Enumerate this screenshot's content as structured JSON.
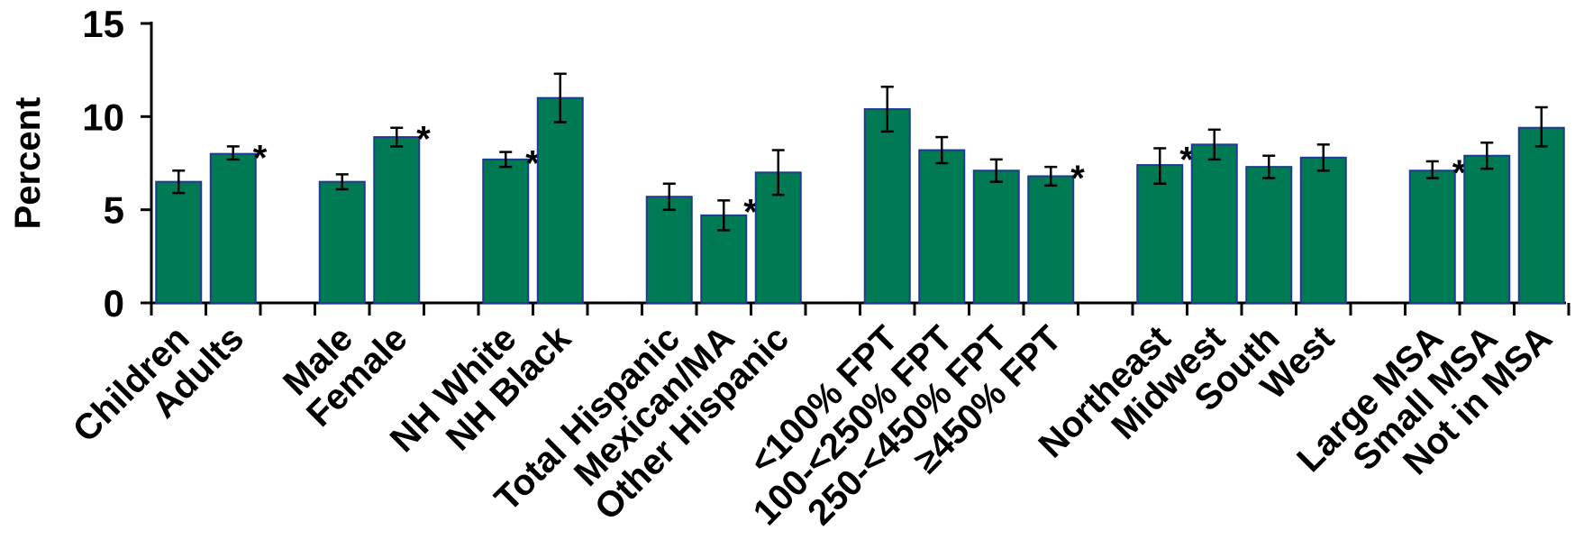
{
  "chart_data": {
    "type": "bar",
    "ylabel": "Percent",
    "ylim": [
      0,
      15
    ],
    "yticks": [
      0,
      5,
      10,
      15
    ],
    "grid": false,
    "legend": "none",
    "colors": {
      "bar": "#007A53",
      "bar_edge": "#1F3A93",
      "axis": "#000000"
    },
    "groups": [
      {
        "categories": [
          "Children",
          "Adults"
        ]
      },
      {
        "categories": [
          "Male",
          "Female"
        ]
      },
      {
        "categories": [
          "NH White",
          "NH Black"
        ]
      },
      {
        "categories": [
          "Total Hispanic",
          "Mexican/MA",
          "Other Hispanic"
        ]
      },
      {
        "categories": [
          "<100% FPT",
          "100-<250% FPT",
          "250-<450% FPT",
          "≥450% FPT"
        ]
      },
      {
        "categories": [
          "Northeast",
          "Midwest",
          "South",
          "West"
        ]
      },
      {
        "categories": [
          "Large MSA",
          "Small MSA",
          "Not in MSA"
        ]
      }
    ],
    "bars": [
      {
        "category": "Children",
        "value": 6.5,
        "err_low": 5.9,
        "err_high": 7.1,
        "significant": false
      },
      {
        "category": "Adults",
        "value": 8.0,
        "err_low": 7.7,
        "err_high": 8.4,
        "significant": true
      },
      {
        "category": "Male",
        "value": 6.5,
        "err_low": 6.1,
        "err_high": 6.9,
        "significant": false
      },
      {
        "category": "Female",
        "value": 8.9,
        "err_low": 8.4,
        "err_high": 9.4,
        "significant": true
      },
      {
        "category": "NH White",
        "value": 7.7,
        "err_low": 7.3,
        "err_high": 8.1,
        "significant": true
      },
      {
        "category": "NH Black",
        "value": 11.0,
        "err_low": 9.7,
        "err_high": 12.3,
        "significant": false
      },
      {
        "category": "Total Hispanic",
        "value": 5.7,
        "err_low": 5.0,
        "err_high": 6.4,
        "significant": false
      },
      {
        "category": "Mexican/MA",
        "value": 4.7,
        "err_low": 3.9,
        "err_high": 5.5,
        "significant": true
      },
      {
        "category": "Other Hispanic",
        "value": 7.0,
        "err_low": 5.8,
        "err_high": 8.2,
        "significant": false
      },
      {
        "category": "<100% FPT",
        "value": 10.4,
        "err_low": 9.2,
        "err_high": 11.6,
        "significant": false
      },
      {
        "category": "100-<250% FPT",
        "value": 8.2,
        "err_low": 7.5,
        "err_high": 8.9,
        "significant": false
      },
      {
        "category": "250-<450% FPT",
        "value": 7.1,
        "err_low": 6.5,
        "err_high": 7.7,
        "significant": false
      },
      {
        "category": "≥450% FPT",
        "value": 6.8,
        "err_low": 6.3,
        "err_high": 7.3,
        "significant": true
      },
      {
        "category": "Northeast",
        "value": 7.4,
        "err_low": 6.4,
        "err_high": 8.3,
        "significant": true
      },
      {
        "category": "Midwest",
        "value": 8.5,
        "err_low": 7.7,
        "err_high": 9.3,
        "significant": false
      },
      {
        "category": "South",
        "value": 7.3,
        "err_low": 6.7,
        "err_high": 7.9,
        "significant": false
      },
      {
        "category": "West",
        "value": 7.8,
        "err_low": 7.1,
        "err_high": 8.5,
        "significant": false
      },
      {
        "category": "Large MSA",
        "value": 7.1,
        "err_low": 6.7,
        "err_high": 7.6,
        "significant": true
      },
      {
        "category": "Small MSA",
        "value": 7.9,
        "err_low": 7.2,
        "err_high": 8.6,
        "significant": false
      },
      {
        "category": "Not in MSA",
        "value": 9.4,
        "err_low": 8.4,
        "err_high": 10.5,
        "significant": false
      }
    ],
    "significance_marker": "*"
  }
}
